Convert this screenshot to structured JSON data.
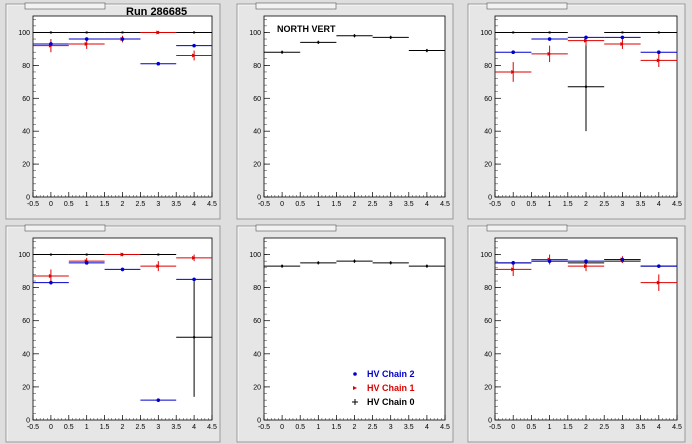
{
  "run_label": "Run 286685",
  "legend": [
    {
      "label": "HV Chain 2",
      "color": "#0000cc"
    },
    {
      "label": "HV Chain 1",
      "color": "#dd0000"
    },
    {
      "label": "HV Chain 0",
      "color": "#000000"
    }
  ],
  "chart_data": [
    {
      "type": "scatter",
      "title": "",
      "annotation": "",
      "xlim": [
        -0.5,
        4.5
      ],
      "ylim": [
        0,
        110
      ],
      "xticks": [
        "-0.5",
        "0",
        "0.5",
        "1",
        "1.5",
        "2",
        "2.5",
        "3",
        "3.5",
        "4",
        "4.5"
      ],
      "yticks": [
        "0",
        "20",
        "40",
        "60",
        "80",
        "100"
      ],
      "series": [
        {
          "name": "HV Chain 0",
          "color": "#000000",
          "x": [
            0,
            1,
            2,
            3,
            4
          ],
          "y": [
            100,
            100,
            100,
            100,
            100
          ],
          "yerr": [
            0,
            0,
            0,
            0,
            0
          ]
        },
        {
          "name": "HV Chain 1",
          "color": "#dd0000",
          "x": [
            0,
            1,
            2,
            3,
            4
          ],
          "y": [
            92,
            93,
            96,
            100,
            86
          ],
          "yerr": [
            4,
            3,
            2,
            1,
            3
          ]
        },
        {
          "name": "HV Chain 2",
          "color": "#0000cc",
          "x": [
            0,
            1,
            2,
            3,
            4
          ],
          "y": [
            93,
            96,
            96,
            81,
            92
          ],
          "yerr": [
            1,
            1,
            1,
            1,
            1
          ]
        }
      ]
    },
    {
      "type": "scatter",
      "title": "",
      "annotation": "NORTH VERT",
      "xlim": [
        -0.5,
        4.5
      ],
      "ylim": [
        0,
        110
      ],
      "xticks": [
        "-0.5",
        "0",
        "0.5",
        "1",
        "1.5",
        "2",
        "2.5",
        "3",
        "3.5",
        "4",
        "4.5"
      ],
      "yticks": [
        "0",
        "20",
        "40",
        "60",
        "80",
        "100"
      ],
      "series": [
        {
          "name": "HV Chain 0",
          "color": "#000000",
          "x": [
            0,
            1,
            2,
            3,
            4
          ],
          "y": [
            88,
            94,
            98,
            97,
            89
          ],
          "yerr": [
            1,
            1,
            1,
            1,
            1
          ]
        }
      ]
    },
    {
      "type": "scatter",
      "title": "",
      "annotation": "",
      "xlim": [
        -0.5,
        4.5
      ],
      "ylim": [
        0,
        110
      ],
      "xticks": [
        "-0.5",
        "0",
        "0.5",
        "1",
        "1.5",
        "2",
        "2.5",
        "3",
        "3.5",
        "4",
        "4.5"
      ],
      "yticks": [
        "0",
        "20",
        "40",
        "60",
        "80",
        "100"
      ],
      "series": [
        {
          "name": "HV Chain 0",
          "color": "#000000",
          "x": [
            0,
            1,
            2,
            3,
            4
          ],
          "y": [
            100,
            100,
            67,
            100,
            100
          ],
          "yerr": [
            0,
            0,
            27,
            0,
            0
          ]
        },
        {
          "name": "HV Chain 1",
          "color": "#dd0000",
          "x": [
            0,
            1,
            2,
            3,
            4
          ],
          "y": [
            76,
            87,
            95,
            93,
            83
          ],
          "yerr": [
            6,
            5,
            3,
            3,
            4
          ]
        },
        {
          "name": "HV Chain 2",
          "color": "#0000cc",
          "x": [
            0,
            1,
            2,
            3,
            4
          ],
          "y": [
            88,
            96,
            97,
            97,
            88
          ],
          "yerr": [
            1,
            1,
            1,
            1,
            1
          ]
        }
      ]
    },
    {
      "type": "scatter",
      "title": "",
      "annotation": "",
      "xlim": [
        -0.5,
        4.5
      ],
      "ylim": [
        0,
        110
      ],
      "xticks": [
        "-0.5",
        "0",
        "0.5",
        "1",
        "1.5",
        "2",
        "2.5",
        "3",
        "3.5",
        "4",
        "4.5"
      ],
      "yticks": [
        "0",
        "20",
        "40",
        "60",
        "80",
        "100"
      ],
      "series": [
        {
          "name": "HV Chain 0",
          "color": "#000000",
          "x": [
            0,
            1,
            2,
            3,
            4
          ],
          "y": [
            100,
            100,
            100,
            100,
            50
          ],
          "yerr": [
            0,
            0,
            0,
            0,
            36
          ]
        },
        {
          "name": "HV Chain 1",
          "color": "#dd0000",
          "x": [
            0,
            1,
            2,
            3,
            4
          ],
          "y": [
            87,
            96,
            100,
            93,
            98
          ],
          "yerr": [
            4,
            2,
            1,
            3,
            2
          ]
        },
        {
          "name": "HV Chain 2",
          "color": "#0000cc",
          "x": [
            0,
            1,
            2,
            3,
            4
          ],
          "y": [
            83,
            95,
            91,
            12,
            85
          ],
          "yerr": [
            1,
            1,
            1,
            1,
            1
          ]
        }
      ]
    },
    {
      "type": "scatter",
      "title": "",
      "annotation": "",
      "xlim": [
        -0.5,
        4.5
      ],
      "ylim": [
        0,
        110
      ],
      "xticks": [
        "-0.5",
        "0",
        "0.5",
        "1",
        "1.5",
        "2",
        "2.5",
        "3",
        "3.5",
        "4",
        "4.5"
      ],
      "yticks": [
        "0",
        "20",
        "40",
        "60",
        "80",
        "100"
      ],
      "series": [
        {
          "name": "HV Chain 0",
          "color": "#000000",
          "x": [
            0,
            1,
            2,
            3,
            4
          ],
          "y": [
            93,
            95,
            96,
            95,
            93
          ],
          "yerr": [
            1,
            1,
            1,
            1,
            1
          ]
        }
      ]
    },
    {
      "type": "scatter",
      "title": "",
      "annotation": "",
      "xlim": [
        -0.5,
        4.5
      ],
      "ylim": [
        0,
        110
      ],
      "xticks": [
        "-0.5",
        "0",
        "0.5",
        "1",
        "1.5",
        "2",
        "2.5",
        "3",
        "3.5",
        "4",
        "4.5"
      ],
      "yticks": [
        "0",
        "20",
        "40",
        "60",
        "80",
        "100"
      ],
      "series": [
        {
          "name": "HV Chain 0",
          "color": "#000000",
          "x": [
            0,
            1,
            2,
            3,
            4
          ],
          "y": [
            95,
            96,
            95,
            96,
            93
          ],
          "yerr": [
            1,
            1,
            1,
            1,
            1
          ]
        },
        {
          "name": "HV Chain 1",
          "color": "#dd0000",
          "x": [
            0,
            1,
            2,
            3,
            4
          ],
          "y": [
            91,
            97,
            93,
            97,
            83
          ],
          "yerr": [
            4,
            3,
            3,
            2,
            5
          ]
        },
        {
          "name": "HV Chain 2",
          "color": "#0000cc",
          "x": [
            0,
            1,
            2,
            3,
            4
          ],
          "y": [
            95,
            96,
            96,
            97,
            93
          ],
          "yerr": [
            1,
            1,
            1,
            1,
            1
          ]
        }
      ]
    }
  ]
}
